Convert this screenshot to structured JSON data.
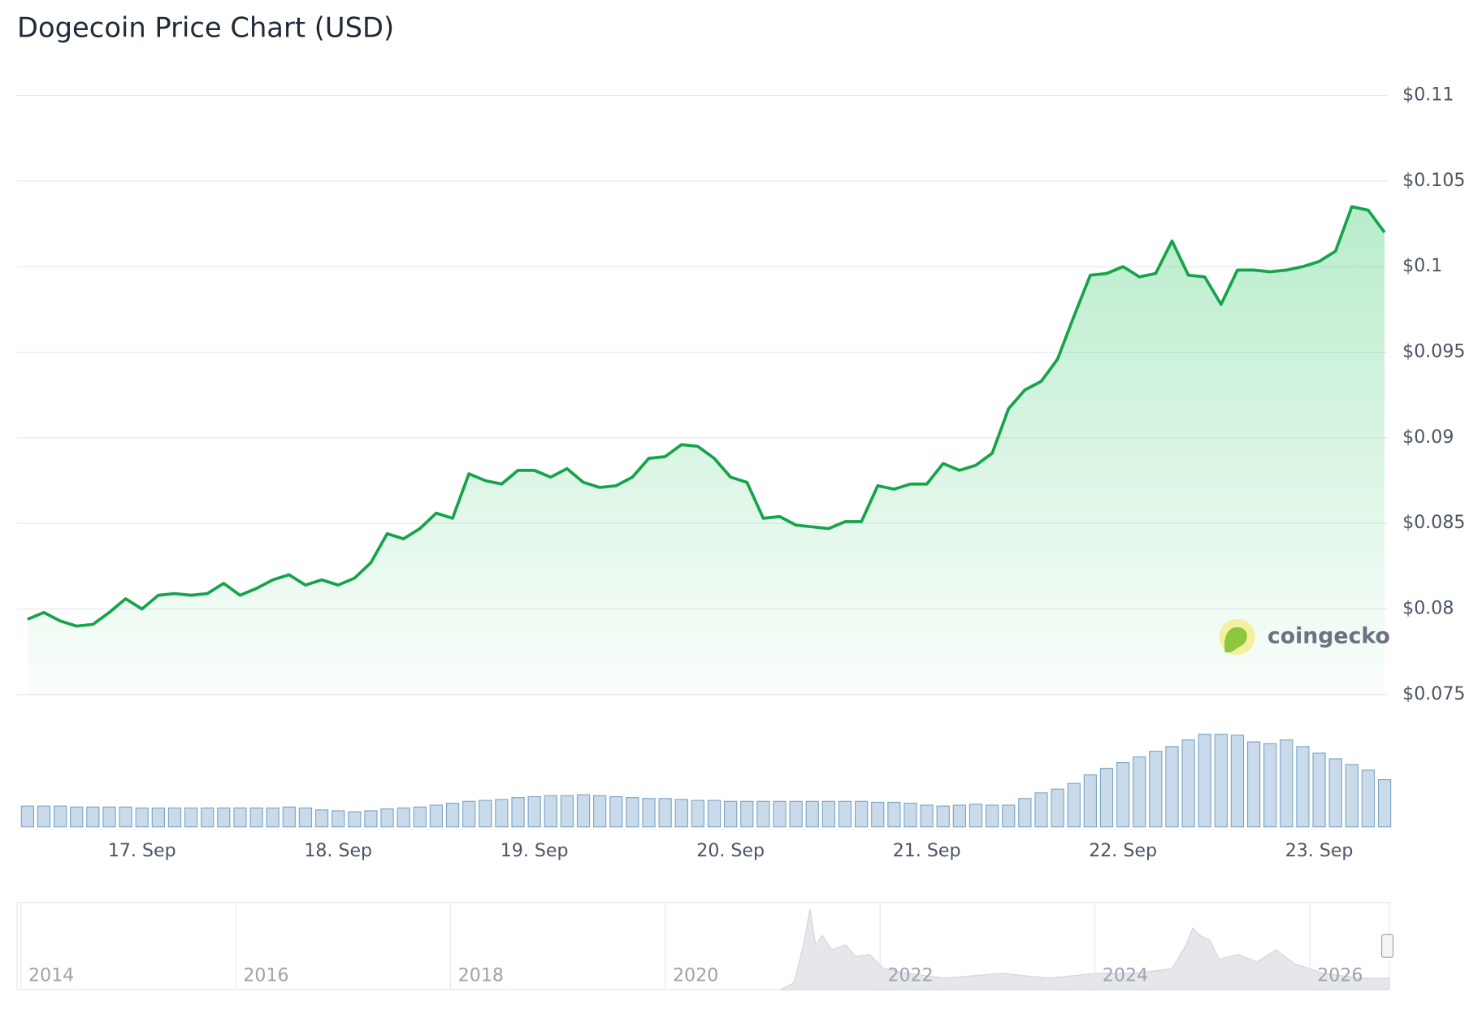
{
  "chart_data": {
    "type": "line",
    "title": "Dogecoin Price Chart (USD)",
    "categories": [
      null,
      null,
      null,
      null,
      null,
      null,
      null,
      "17. Sep",
      null,
      null,
      null,
      null,
      null,
      null,
      null,
      null,
      null,
      null,
      null,
      "18. Sep",
      null,
      null,
      null,
      null,
      null,
      null,
      null,
      null,
      null,
      null,
      null,
      "19. Sep",
      null,
      null,
      null,
      null,
      null,
      null,
      null,
      null,
      null,
      null,
      null,
      "20. Sep",
      null,
      null,
      null,
      null,
      null,
      null,
      null,
      null,
      null,
      null,
      null,
      "21. Sep",
      null,
      null,
      null,
      null,
      null,
      null,
      null,
      null,
      null,
      null,
      null,
      "22. Sep",
      null,
      null,
      null,
      null,
      null,
      null,
      null,
      null,
      null,
      null,
      null,
      "23. Sep",
      null,
      null,
      null,
      null
    ],
    "series": [
      {
        "color": "#16a34a",
        "values": [
          0.0794,
          0.0798,
          0.0793,
          0.079,
          0.0791,
          0.0798,
          0.0806,
          0.08,
          0.0808,
          0.0809,
          0.0808,
          0.0809,
          0.0815,
          0.0808,
          0.0812,
          0.0817,
          0.082,
          0.0814,
          0.0817,
          0.0814,
          0.0818,
          0.0827,
          0.0844,
          0.0841,
          0.0847,
          0.0856,
          0.0853,
          0.0879,
          0.0875,
          0.0873,
          0.0881,
          0.0881,
          0.0877,
          0.0882,
          0.0874,
          0.0871,
          0.0872,
          0.0877,
          0.0888,
          0.0889,
          0.0896,
          0.0895,
          0.0888,
          0.0877,
          0.0874,
          0.0853,
          0.0854,
          0.0849,
          0.0848,
          0.0847,
          0.0851,
          0.0851,
          0.0872,
          0.087,
          0.0873,
          0.0873,
          0.0885,
          0.0881,
          0.0884,
          0.0891,
          0.0917,
          0.0928,
          0.0933,
          0.0946,
          0.0971,
          0.0995,
          0.0996,
          0.1,
          0.0994,
          0.0996,
          0.1015,
          0.0995,
          0.0994,
          0.0978,
          0.0998,
          0.0998,
          0.0997,
          0.0998,
          0.1,
          0.1003,
          0.1009,
          0.1035,
          0.1033,
          0.102
        ]
      }
    ],
    "ylim": [
      0.075,
      0.11
    ],
    "yticks": [
      {
        "value": 0.075,
        "label": "$0.075"
      },
      {
        "value": 0.08,
        "label": "$0.08"
      },
      {
        "value": 0.085,
        "label": "$0.085"
      },
      {
        "value": 0.09,
        "label": "$0.09"
      },
      {
        "value": 0.095,
        "label": "$0.095"
      },
      {
        "value": 0.1,
        "label": "$0.1"
      },
      {
        "value": 0.105,
        "label": "$0.105"
      },
      {
        "value": 0.11,
        "label": "$0.11"
      }
    ],
    "grid": true,
    "volume": {
      "color": "#c9dbea",
      "values": [
        22,
        22,
        22,
        21,
        21,
        21,
        21,
        20,
        20,
        20,
        20,
        20,
        20,
        20,
        20,
        20,
        21,
        20,
        18,
        17,
        16,
        17,
        19,
        20,
        21,
        23,
        25,
        27,
        28,
        29,
        31,
        32,
        33,
        33,
        34,
        33,
        32,
        31,
        30,
        30,
        29,
        28,
        28,
        27,
        27,
        27,
        27,
        27,
        27,
        27,
        27,
        27,
        26,
        26,
        25,
        23,
        22,
        23,
        24,
        23,
        23,
        30,
        36,
        40,
        46,
        55,
        62,
        68,
        74,
        80,
        85,
        92,
        98,
        98,
        97,
        90,
        88,
        92,
        85,
        78,
        72,
        66,
        60,
        50
      ],
      "ylim": [
        0,
        100
      ]
    },
    "watermark": "coingecko",
    "navigator": {
      "labels": [
        "2014",
        "2016",
        "2018",
        "2020",
        "2022",
        "2024",
        "2026"
      ]
    }
  }
}
